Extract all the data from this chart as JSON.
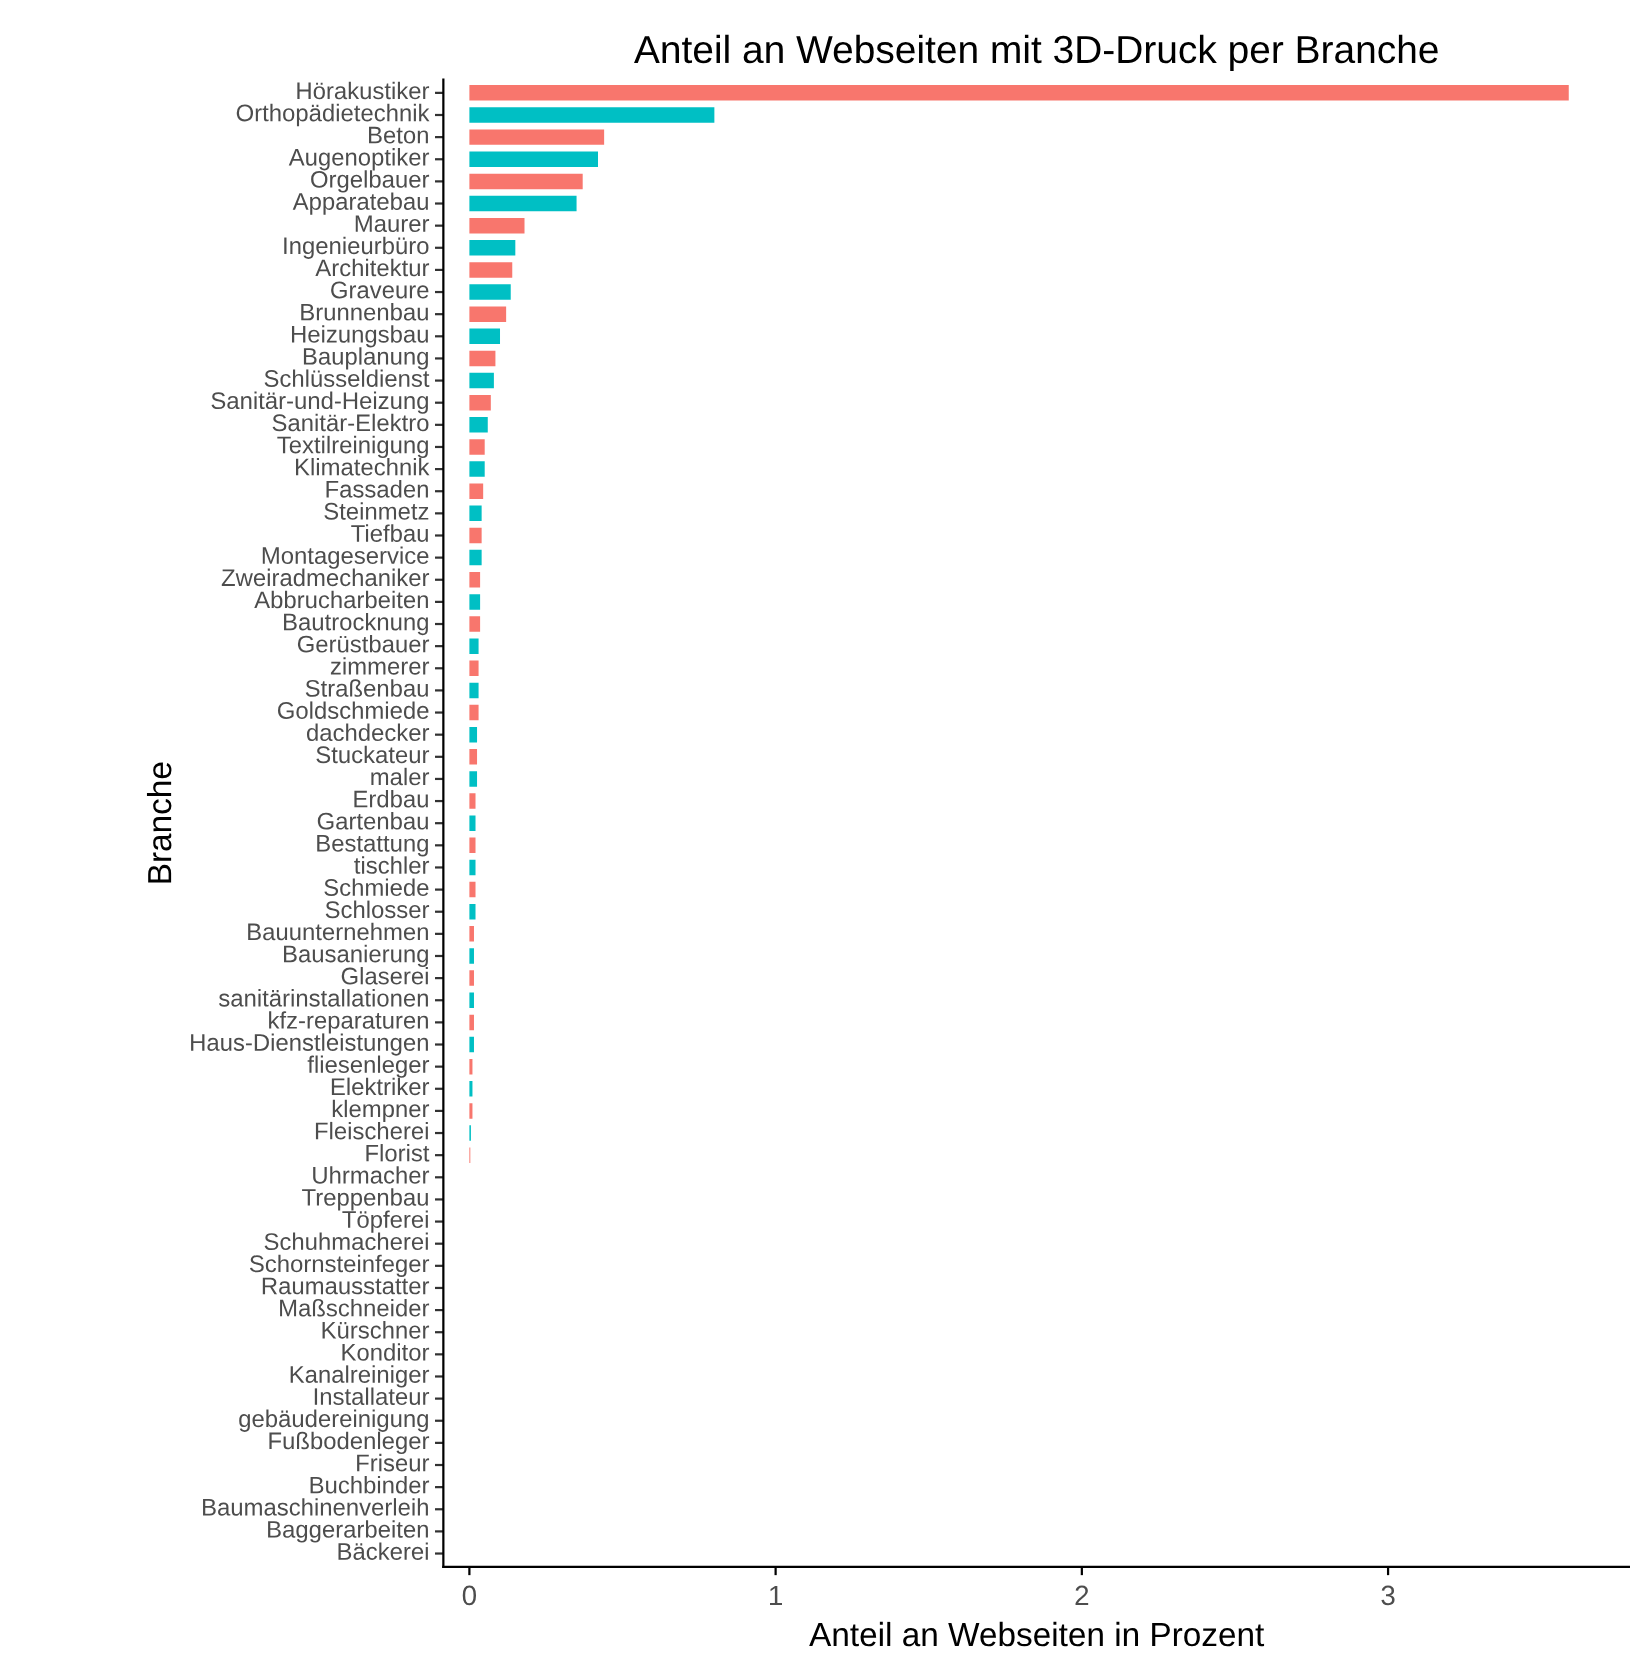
{
  "chart_data": {
    "type": "bar",
    "orientation": "horizontal",
    "title": "Anteil an Webseiten mit 3D-Druck per Branche",
    "xlabel": "Anteil an Webseiten in Prozent",
    "ylabel": "Branche",
    "categories": [
      "Hörakustiker",
      "Orthopädietechnik",
      "Beton",
      "Augenoptiker",
      "Orgelbauer",
      "Apparatebau",
      "Maurer",
      "Ingenieurbüro",
      "Architektur",
      "Graveure",
      "Brunnenbau",
      "Heizungsbau",
      "Bauplanung",
      "Schlüsseldienst",
      "Sanitär-und-Heizung",
      "Sanitär-Elektro",
      "Textilreinigung",
      "Klimatechnik",
      "Fassaden",
      "Steinmetz",
      "Tiefbau",
      "Montageservice",
      "Zweiradmechaniker",
      "Abbrucharbeiten",
      "Bautrocknung",
      "Gerüstbauer",
      "zimmerer",
      "Straßenbau",
      "Goldschmiede",
      "dachdecker",
      "Stuckateur",
      "maler",
      "Erdbau",
      "Gartenbau",
      "Bestattung",
      "tischler",
      "Schmiede",
      "Schlosser",
      "Bauunternehmen",
      "Bausanierung",
      "Glaserei",
      "sanitärinstallationen",
      "kfz-reparaturen",
      "Haus-Dienstleistungen",
      "fliesenleger",
      "Elektriker",
      "klempner",
      "Fleischerei",
      "Florist",
      "Uhrmacher",
      "Treppenbau",
      "Töpferei",
      "Schuhmacherei",
      "Schornsteinfeger",
      "Raumausstatter",
      "Maßschneider",
      "Kürschner",
      "Konditor",
      "Kanalreiniger",
      "Installateur",
      "gebäudereinigung",
      "Fußbodenleger",
      "Friseur",
      "Buchbinder",
      "Baumaschinenverleih",
      "Baggerarbeiten",
      "Bäckerei"
    ],
    "values": [
      3.59,
      0.8,
      0.44,
      0.42,
      0.37,
      0.35,
      0.18,
      0.15,
      0.14,
      0.135,
      0.12,
      0.1,
      0.085,
      0.08,
      0.07,
      0.06,
      0.05,
      0.05,
      0.045,
      0.04,
      0.04,
      0.04,
      0.035,
      0.035,
      0.035,
      0.03,
      0.03,
      0.03,
      0.03,
      0.025,
      0.025,
      0.025,
      0.02,
      0.02,
      0.02,
      0.02,
      0.02,
      0.02,
      0.015,
      0.015,
      0.015,
      0.015,
      0.015,
      0.015,
      0.01,
      0.01,
      0.01,
      0.005,
      0.003,
      0,
      0,
      0,
      0,
      0,
      0,
      0,
      0,
      0,
      0,
      0,
      0,
      0,
      0,
      0,
      0,
      0,
      0
    ],
    "colors": [
      "#f8766d",
      "#00bfc4",
      "#f8766d",
      "#00bfc4",
      "#f8766d",
      "#00bfc4",
      "#f8766d",
      "#00bfc4",
      "#f8766d",
      "#00bfc4",
      "#f8766d",
      "#00bfc4",
      "#f8766d",
      "#00bfc4",
      "#f8766d",
      "#00bfc4",
      "#f8766d",
      "#00bfc4",
      "#f8766d",
      "#00bfc4",
      "#f8766d",
      "#00bfc4",
      "#f8766d",
      "#00bfc4",
      "#f8766d",
      "#00bfc4",
      "#f8766d",
      "#00bfc4",
      "#f8766d",
      "#00bfc4",
      "#f8766d",
      "#00bfc4",
      "#f8766d",
      "#00bfc4",
      "#f8766d",
      "#00bfc4",
      "#f8766d",
      "#00bfc4",
      "#f8766d",
      "#00bfc4",
      "#f8766d",
      "#00bfc4",
      "#f8766d",
      "#00bfc4",
      "#f8766d",
      "#00bfc4",
      "#f8766d",
      "#00bfc4",
      "#f8766d",
      "#00bfc4",
      "#f8766d",
      "#00bfc4",
      "#f8766d",
      "#00bfc4",
      "#f8766d",
      "#00bfc4",
      "#f8766d",
      "#00bfc4",
      "#f8766d",
      "#00bfc4",
      "#f8766d",
      "#00bfc4",
      "#f8766d",
      "#00bfc4",
      "#f8766d",
      "#00bfc4",
      "#f8766d"
    ],
    "xlim": [
      -0.085,
      3.79
    ],
    "xticks": [
      0,
      1,
      2,
      3
    ],
    "grid": false,
    "legend": false
  }
}
